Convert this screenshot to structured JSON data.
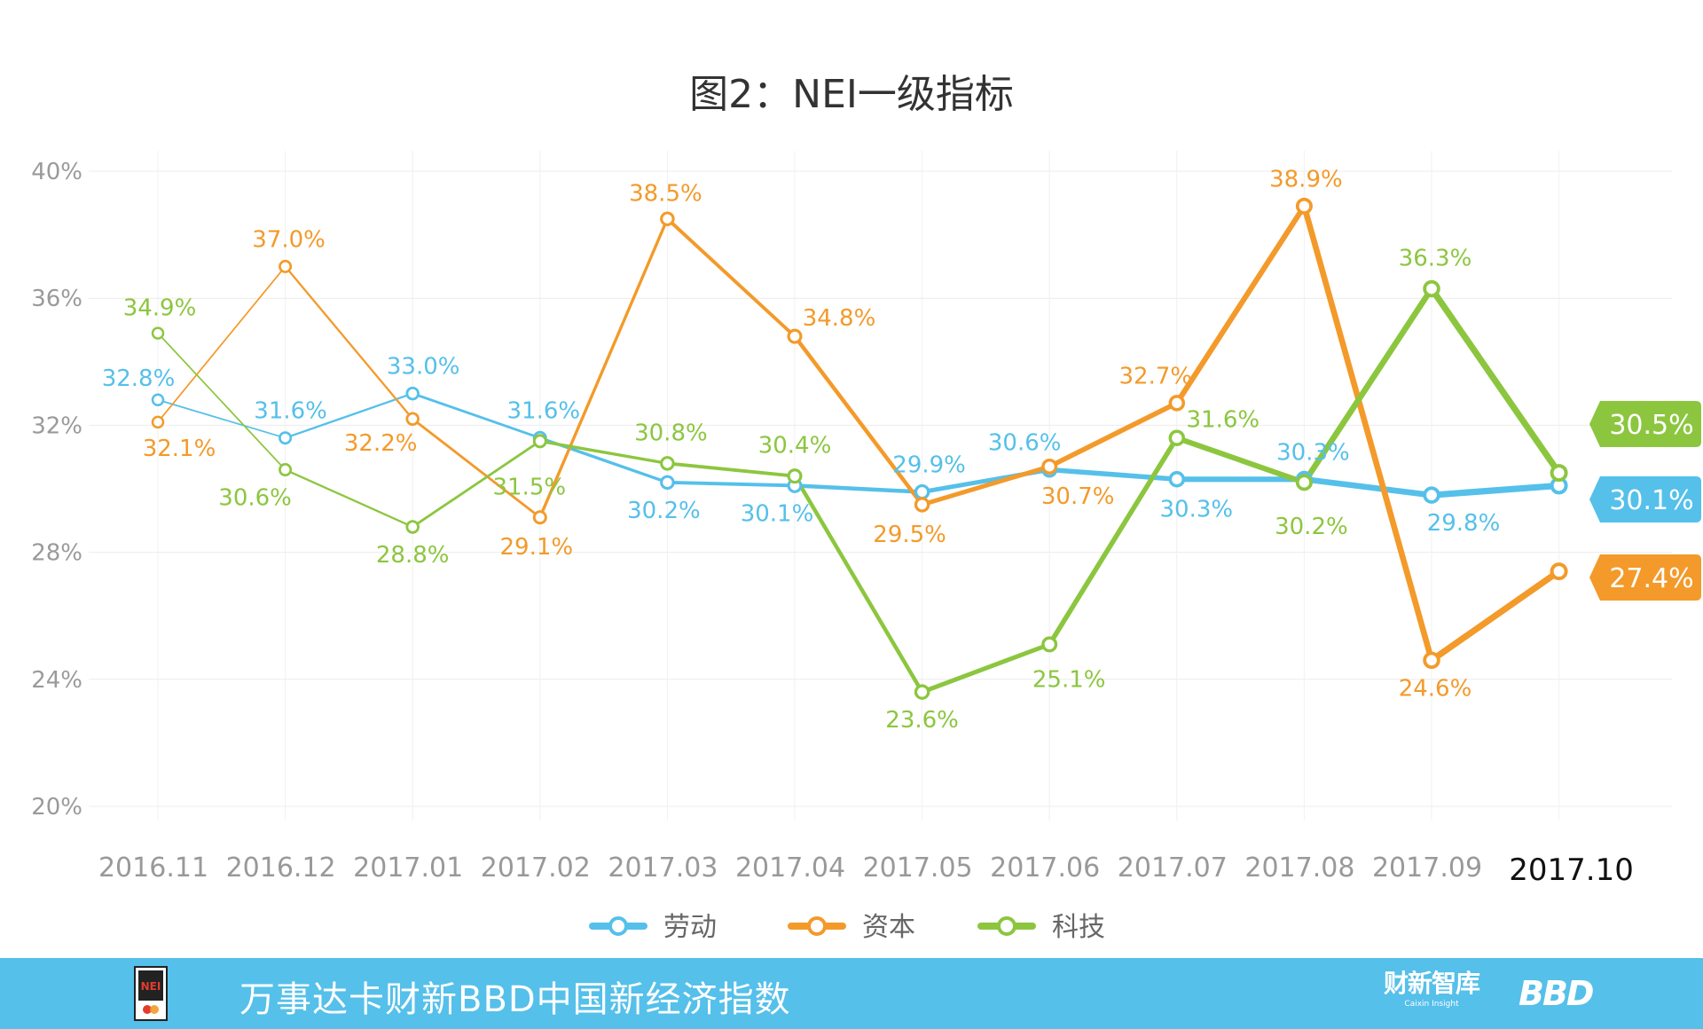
{
  "title": "图2：NEI一级指标",
  "chart_data": {
    "type": "line",
    "title": "图2：NEI一级指标",
    "categories": [
      "2016.11",
      "2016.12",
      "2017.01",
      "2017.02",
      "2017.03",
      "2017.04",
      "2017.05",
      "2017.06",
      "2017.07",
      "2017.08",
      "2017.09",
      "2017.10"
    ],
    "yticks": [
      "40%",
      "36%",
      "32%",
      "28%",
      "24%",
      "20%"
    ],
    "ylim": [
      20,
      40
    ],
    "series": [
      {
        "name": "劳动",
        "color": "#55c0ea",
        "values": [
          32.8,
          31.6,
          33.0,
          31.6,
          30.2,
          30.1,
          29.9,
          30.6,
          30.3,
          30.3,
          29.8,
          30.1
        ],
        "labels": [
          "32.8%",
          "31.6%",
          "33.0%",
          "31.6%",
          "30.2%",
          "30.1%",
          "29.9%",
          "30.6%",
          "30.3%",
          "30.3%",
          "29.8%",
          "30.1%"
        ]
      },
      {
        "name": "资本",
        "color": "#f39a2a",
        "values": [
          32.1,
          37.0,
          32.2,
          29.1,
          38.5,
          34.8,
          29.5,
          30.7,
          32.7,
          38.9,
          24.6,
          27.4
        ],
        "labels": [
          "32.1%",
          "37.0%",
          "32.2%",
          "29.1%",
          "38.5%",
          "34.8%",
          "29.5%",
          "30.7%",
          "32.7%",
          "38.9%",
          "24.6%",
          "27.4%"
        ]
      },
      {
        "name": "科技",
        "color": "#8cc63f",
        "values": [
          34.9,
          30.6,
          28.8,
          31.5,
          30.8,
          30.4,
          23.6,
          25.1,
          31.6,
          30.2,
          36.3,
          30.5
        ],
        "labels": [
          "34.9%",
          "30.6%",
          "28.8%",
          "31.5%",
          "30.8%",
          "30.4%",
          "23.6%",
          "25.1%",
          "31.6%",
          "30.2%",
          "36.3%",
          "30.5%"
        ]
      }
    ],
    "end_badges": [
      "30.1%",
      "27.4%",
      "30.5%"
    ],
    "legend": [
      "劳动",
      "资本",
      "科技"
    ],
    "legend_position": "bottom"
  },
  "footer": {
    "title": "万事达卡财新BBD中国新经济指数",
    "logo_text": "NEI",
    "brand_cn": "财新智库",
    "brand_en": "Caixin Insight",
    "brand_bbd": "BBD"
  }
}
